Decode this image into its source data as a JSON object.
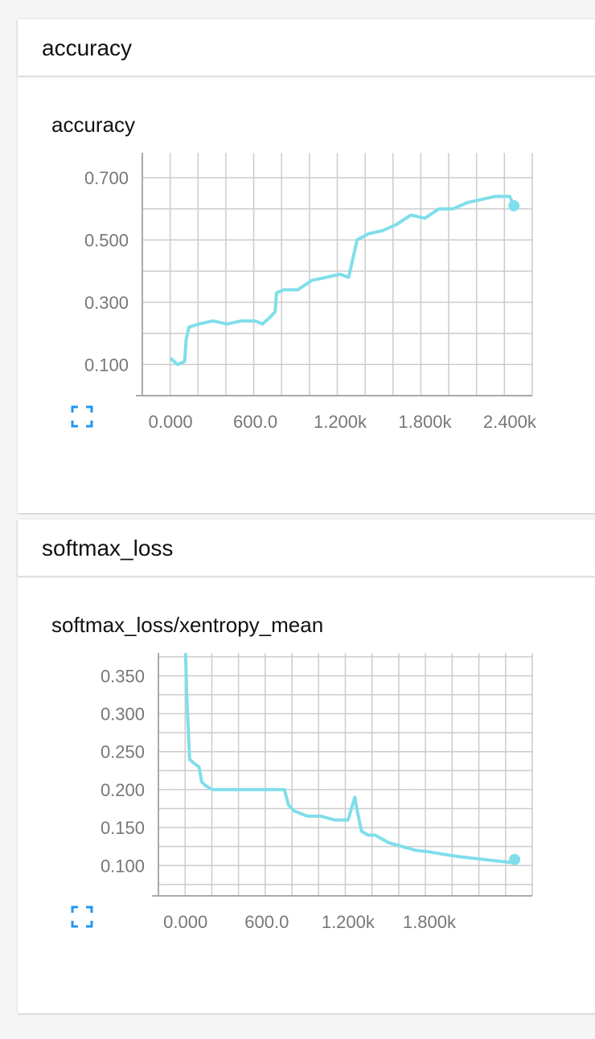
{
  "sections": [
    {
      "header": "accuracy",
      "card_title": "accuracy",
      "expand_icon": "fullscreen-icon"
    },
    {
      "header": "softmax_loss",
      "card_title": "softmax_loss/xentropy_mean",
      "expand_icon": "fullscreen-icon"
    }
  ],
  "colors": {
    "line": "#80deea",
    "grid": "#cccccc",
    "accent": "#2196f3"
  },
  "chart_data": [
    {
      "type": "line",
      "title": "accuracy",
      "xlabel": "",
      "ylabel": "",
      "xlim": [
        -200,
        2560
      ],
      "ylim": [
        0.0,
        0.78
      ],
      "xticks": [
        0,
        600,
        1200,
        1800,
        2400
      ],
      "xtick_labels": [
        "0.000",
        "600.0",
        "1.200k",
        "1.800k",
        "2.400k"
      ],
      "yticks": [
        0.1,
        0.3,
        0.5,
        0.7
      ],
      "ytick_labels": [
        "0.100",
        "0.300",
        "0.500",
        "0.700"
      ],
      "grid": true,
      "series": [
        {
          "x": [
            0,
            50,
            100,
            110,
            130,
            200,
            300,
            400,
            500,
            600,
            650,
            700,
            740,
            750,
            800,
            900,
            1000,
            1100,
            1200,
            1260,
            1300,
            1320,
            1400,
            1500,
            1600,
            1700,
            1800,
            1900,
            2000,
            2100,
            2200,
            2300,
            2400,
            2430
          ],
          "y": [
            0.12,
            0.1,
            0.11,
            0.18,
            0.22,
            0.23,
            0.24,
            0.23,
            0.24,
            0.24,
            0.23,
            0.25,
            0.27,
            0.33,
            0.34,
            0.34,
            0.37,
            0.38,
            0.39,
            0.38,
            0.46,
            0.5,
            0.52,
            0.53,
            0.55,
            0.58,
            0.57,
            0.6,
            0.6,
            0.62,
            0.63,
            0.64,
            0.64,
            0.61
          ]
        }
      ]
    },
    {
      "type": "line",
      "title": "softmax_loss/xentropy_mean",
      "xlabel": "",
      "ylabel": "",
      "xlim": [
        -200,
        2560
      ],
      "ylim": [
        0.06,
        0.38
      ],
      "xticks": [
        0,
        600,
        1200,
        1800
      ],
      "xtick_labels": [
        "0.000",
        "600.0",
        "1.200k",
        "1.800k"
      ],
      "yticks": [
        0.1,
        0.15,
        0.2,
        0.25,
        0.3,
        0.35
      ],
      "ytick_labels": [
        "0.100",
        "0.150",
        "0.200",
        "0.250",
        "0.300",
        "0.350"
      ],
      "grid": true,
      "series": [
        {
          "x": [
            0,
            10,
            30,
            60,
            100,
            120,
            150,
            200,
            300,
            400,
            500,
            600,
            700,
            730,
            760,
            800,
            900,
            1000,
            1100,
            1200,
            1250,
            1270,
            1300,
            1350,
            1400,
            1500,
            1600,
            1700,
            1800,
            1900,
            2000,
            2100,
            2200,
            2300,
            2400,
            2430
          ],
          "y": [
            0.38,
            0.32,
            0.24,
            0.235,
            0.23,
            0.21,
            0.205,
            0.2,
            0.2,
            0.2,
            0.2,
            0.2,
            0.2,
            0.2,
            0.18,
            0.172,
            0.165,
            0.165,
            0.16,
            0.16,
            0.19,
            0.17,
            0.145,
            0.14,
            0.14,
            0.13,
            0.125,
            0.12,
            0.118,
            0.115,
            0.112,
            0.11,
            0.108,
            0.106,
            0.104,
            0.108
          ]
        }
      ]
    }
  ]
}
